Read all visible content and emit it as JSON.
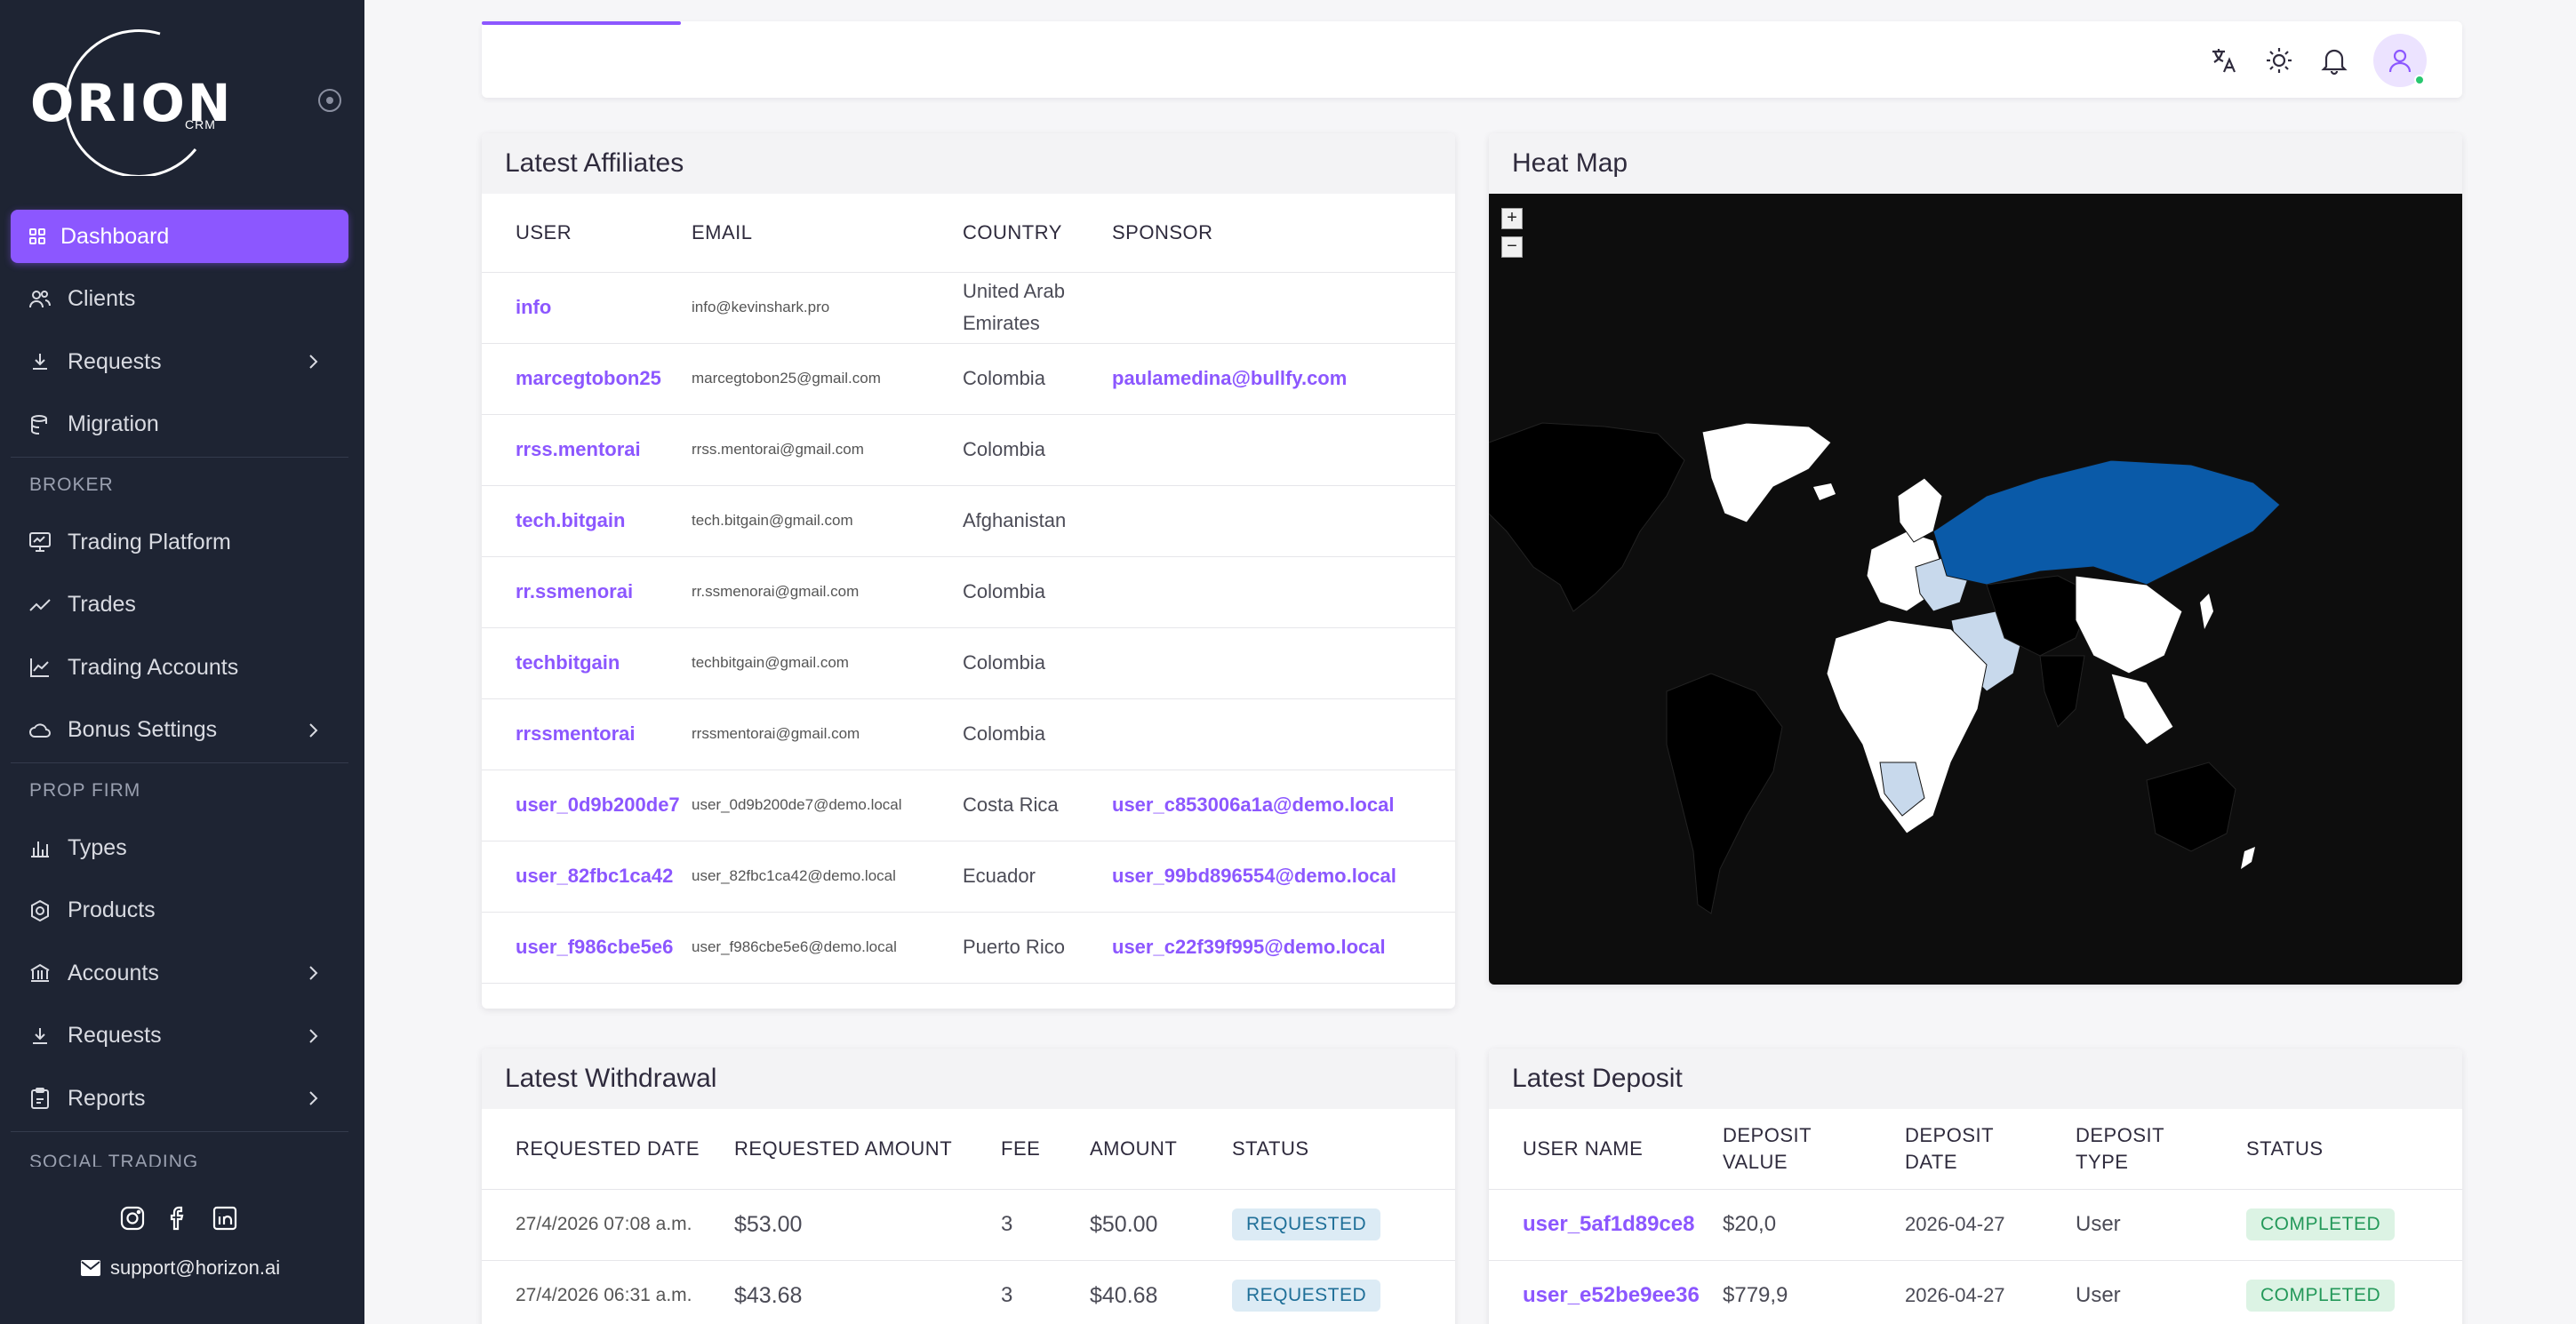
{
  "brand": {
    "name": "ORION",
    "sub": "CRM"
  },
  "colors": {
    "accent": "#8c57ff",
    "sidebar": "#1e2433",
    "success": "#28c76f"
  },
  "sidebar": {
    "items": [
      {
        "label": "Dashboard",
        "icon": "dashboard-icon",
        "active": true
      },
      {
        "label": "Clients",
        "icon": "users-icon"
      },
      {
        "label": "Requests",
        "icon": "download-icon",
        "has_children": true
      },
      {
        "label": "Migration",
        "icon": "database-icon"
      }
    ],
    "broker_label": "BROKER",
    "broker": [
      {
        "label": "Trading Platform",
        "icon": "monitor-icon"
      },
      {
        "label": "Trades",
        "icon": "trend-icon"
      },
      {
        "label": "Trading Accounts",
        "icon": "chart-area-icon"
      },
      {
        "label": "Bonus Settings",
        "icon": "cloud-icon",
        "has_children": true
      }
    ],
    "prop_label": "PROP FIRM",
    "prop": [
      {
        "label": "Types",
        "icon": "chart-bar-icon"
      },
      {
        "label": "Products",
        "icon": "settings-icon"
      },
      {
        "label": "Accounts",
        "icon": "bank-icon",
        "has_children": true
      },
      {
        "label": "Requests",
        "icon": "download-icon",
        "has_children": true
      },
      {
        "label": "Reports",
        "icon": "clipboard-icon",
        "has_children": true
      }
    ],
    "social_label": "SOCIAL TRADING",
    "footer": {
      "email": "support@horizon.ai",
      "socials": [
        "instagram-icon",
        "facebook-icon",
        "linkedin-icon"
      ]
    }
  },
  "topbar": {
    "icons": [
      "translate-icon",
      "sun-icon",
      "bell-icon",
      "user-icon"
    ]
  },
  "affiliates": {
    "title": "Latest Affiliates",
    "columns": [
      "USER",
      "EMAIL",
      "COUNTRY",
      "SPONSOR"
    ],
    "rows": [
      {
        "user": "info",
        "email": "info@kevinshark.pro",
        "country": "United Arab Emirates",
        "sponsor": ""
      },
      {
        "user": "marcegtobon25",
        "email": "marcegtobon25@gmail.com",
        "country": "Colombia",
        "sponsor": "paulamedina@bullfy.com"
      },
      {
        "user": "rrss.mentorai",
        "email": "rrss.mentorai@gmail.com",
        "country": "Colombia",
        "sponsor": ""
      },
      {
        "user": "tech.bitgain",
        "email": "tech.bitgain@gmail.com",
        "country": "Afghanistan",
        "sponsor": ""
      },
      {
        "user": "rr.ssmenorai",
        "email": "rr.ssmenorai@gmail.com",
        "country": "Colombia",
        "sponsor": ""
      },
      {
        "user": "techbitgain",
        "email": "techbitgain@gmail.com",
        "country": "Colombia",
        "sponsor": ""
      },
      {
        "user": "rrssmentorai",
        "email": "rrssmentorai@gmail.com",
        "country": "Colombia",
        "sponsor": ""
      },
      {
        "user": "user_0d9b200de7",
        "email": "user_0d9b200de7@demo.local",
        "country": "Costa Rica",
        "sponsor": "user_c853006a1a@demo.local"
      },
      {
        "user": "user_82fbc1ca42",
        "email": "user_82fbc1ca42@demo.local",
        "country": "Ecuador",
        "sponsor": "user_99bd896554@demo.local"
      },
      {
        "user": "user_f986cbe5e6",
        "email": "user_f986cbe5e6@demo.local",
        "country": "Puerto Rico",
        "sponsor": "user_c22f39f995@demo.local"
      }
    ]
  },
  "heatmap": {
    "title": "Heat Map",
    "zoom_in": "+",
    "zoom_out": "−"
  },
  "withdrawal": {
    "title": "Latest Withdrawal",
    "columns": [
      "REQUESTED DATE",
      "REQUESTED AMOUNT",
      "FEE",
      "AMOUNT",
      "STATUS"
    ],
    "rows": [
      {
        "date": "27/4/2026 07:08 a.m.",
        "requested": "$53.00",
        "fee": "3",
        "amount": "$50.00",
        "status": "REQUESTED"
      },
      {
        "date": "27/4/2026 06:31 a.m.",
        "requested": "$43.68",
        "fee": "3",
        "amount": "$40.68",
        "status": "REQUESTED"
      }
    ]
  },
  "deposit": {
    "title": "Latest Deposit",
    "columns": [
      "USER NAME",
      "DEPOSIT VALUE",
      "DEPOSIT DATE",
      "DEPOSIT TYPE",
      "STATUS"
    ],
    "rows": [
      {
        "user": "user_5af1d89ce8",
        "value": "$20,0",
        "date": "2026-04-27",
        "type": "User",
        "status": "COMPLETED"
      },
      {
        "user": "user_e52be9ee36",
        "value": "$779,9",
        "date": "2026-04-27",
        "type": "User",
        "status": "COMPLETED"
      }
    ]
  }
}
